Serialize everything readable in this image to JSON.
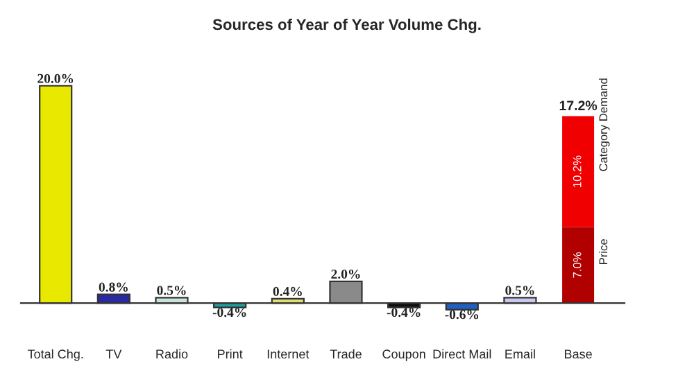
{
  "chart_data": {
    "type": "bar",
    "title": "Sources of Year of Year Volume Chg.",
    "categories": [
      "Total Chg.",
      "TV",
      "Radio",
      "Print",
      "Internet",
      "Trade",
      "Coupon",
      "Direct Mail",
      "Email",
      "Base"
    ],
    "stacked": true,
    "series": [
      {
        "values": [
          20.0,
          0.8,
          0.5,
          -0.4,
          0.4,
          2.0,
          -0.4,
          -0.6,
          0.5,
          null
        ],
        "colors": [
          "#e8e800",
          "#2a2aa0",
          "#c8e4dc",
          "#1fa0a0",
          "#e0e070",
          "#8a8a8a",
          "#101010",
          "#2060c0",
          "#c8c8f0",
          null
        ],
        "value_labels": [
          "20.0%",
          "0.8%",
          "0.5%",
          "-0.4%",
          "0.4%",
          "2.0%",
          "-0.4%",
          "-0.6%",
          "0.5%",
          null
        ]
      },
      {
        "name": "Price",
        "color": "#b00000",
        "values": [
          null,
          null,
          null,
          null,
          null,
          null,
          null,
          null,
          null,
          7.0
        ],
        "value_labels": [
          null,
          null,
          null,
          null,
          null,
          null,
          null,
          null,
          null,
          "7.0%"
        ]
      },
      {
        "name": "Category Demand",
        "color": "#f00000",
        "values": [
          null,
          null,
          null,
          null,
          null,
          null,
          null,
          null,
          null,
          10.2
        ],
        "value_labels": [
          null,
          null,
          null,
          null,
          null,
          null,
          null,
          null,
          null,
          "10.2%"
        ]
      }
    ],
    "totals": [
      null,
      null,
      null,
      null,
      null,
      null,
      null,
      null,
      null,
      "17.2%"
    ],
    "grid": false,
    "legend": false
  }
}
